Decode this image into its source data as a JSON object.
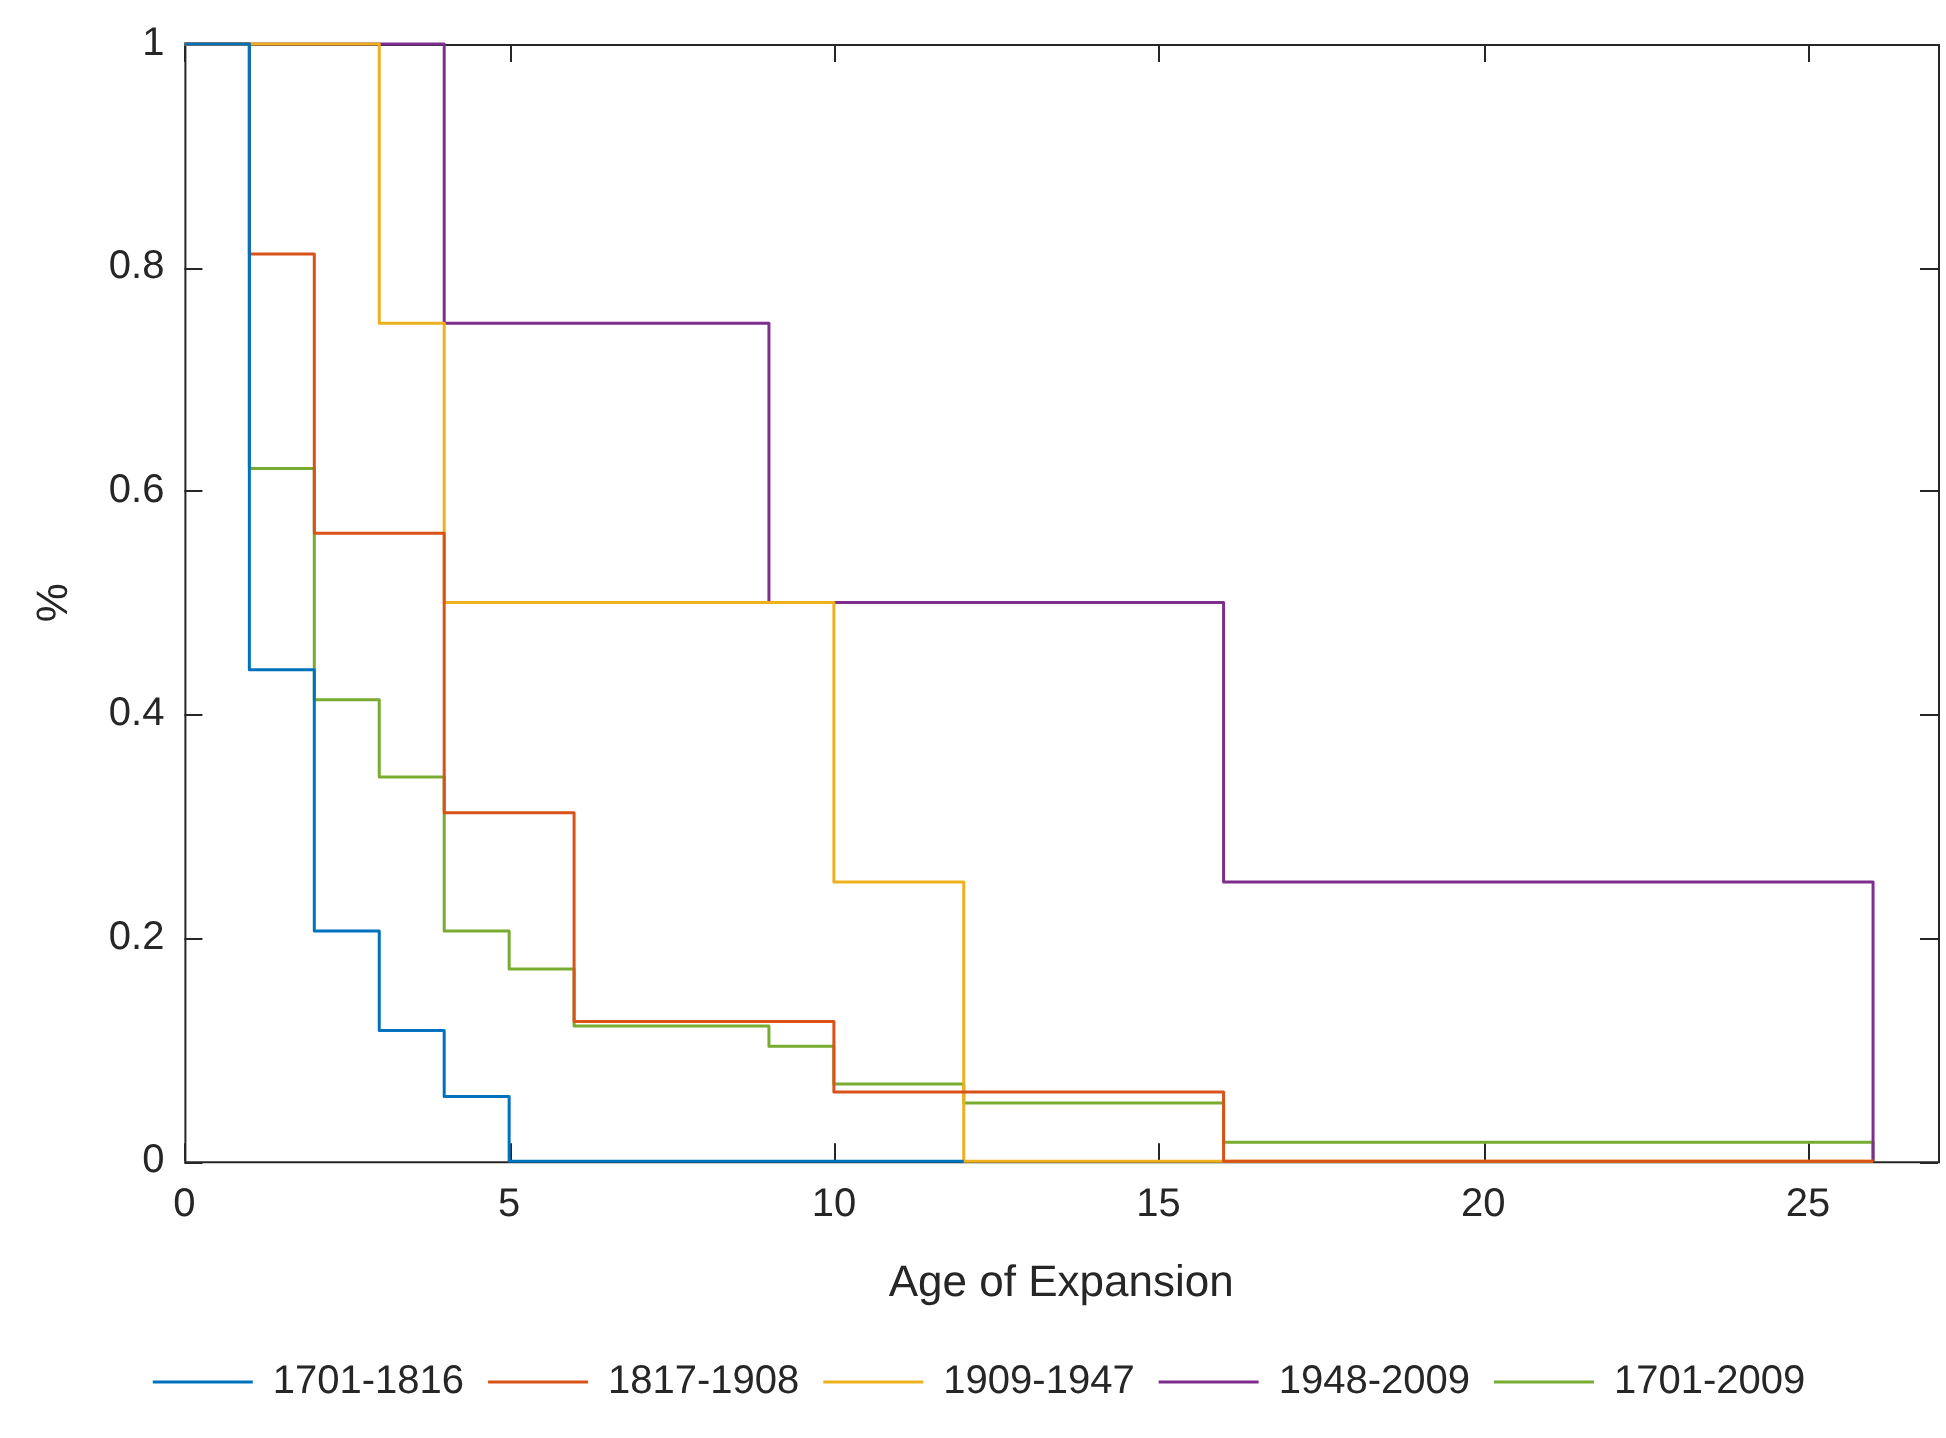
{
  "chart_data": {
    "type": "step",
    "xlabel": "Age of Expansion",
    "ylabel": "%",
    "xlim": [
      0,
      27
    ],
    "xticks": [
      0,
      5,
      10,
      15,
      20,
      25
    ],
    "ylim": [
      0,
      1
    ],
    "yticks": [
      0,
      0.2,
      0.4,
      0.6,
      0.8,
      1
    ],
    "grid": false,
    "legend": "bottom",
    "marker": "none",
    "line_style": "solid",
    "series": [
      {
        "name": "1701-1816",
        "color": "#0072bd",
        "x": [
          0,
          1,
          2,
          3,
          4,
          5,
          12
        ],
        "values": [
          1,
          0.44,
          0.206,
          0.117,
          0.058,
          0,
          0
        ]
      },
      {
        "name": "1817-1908",
        "color": "#d95319",
        "x": [
          0,
          1,
          2,
          4,
          6,
          10,
          16,
          26
        ],
        "values": [
          1,
          0.812,
          0.562,
          0.312,
          0.125,
          0.062,
          0,
          0
        ]
      },
      {
        "name": "1909-1947",
        "color": "#edb120",
        "x": [
          0,
          3,
          4,
          10,
          12,
          26
        ],
        "values": [
          1,
          0.75,
          0.5,
          0.25,
          0,
          0
        ]
      },
      {
        "name": "1948-2009",
        "color": "#7e2f8e",
        "x": [
          0,
          4,
          9,
          16,
          26
        ],
        "values": [
          1,
          0.75,
          0.5,
          0.25,
          0
        ]
      },
      {
        "name": "1701-2009",
        "color": "#77ac30",
        "x": [
          0,
          1,
          2,
          3,
          4,
          5,
          6,
          9,
          10,
          12,
          16,
          26
        ],
        "values": [
          1,
          0.62,
          0.413,
          0.344,
          0.206,
          0.172,
          0.121,
          0.103,
          0.069,
          0.052,
          0.017,
          0
        ]
      }
    ]
  }
}
